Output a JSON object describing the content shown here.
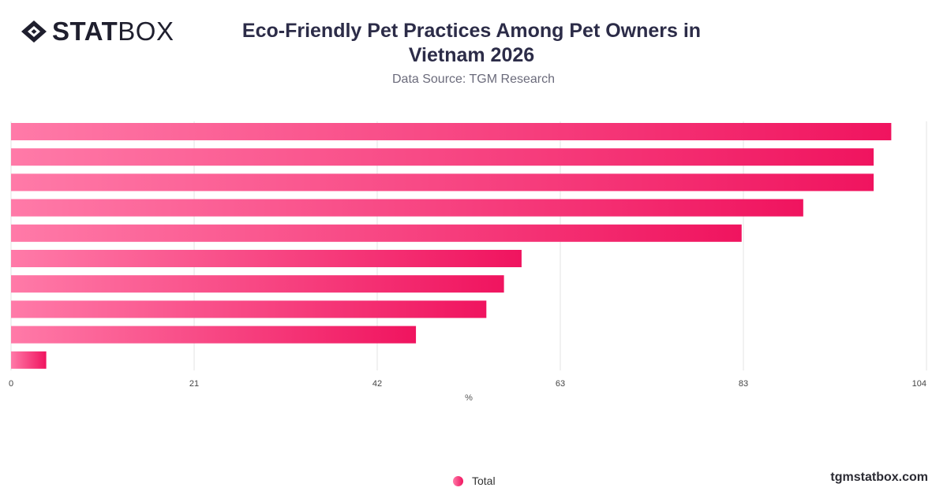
{
  "brand": {
    "logo_bold": "STAT",
    "logo_light": "BOX",
    "site": "tgmstatbox.com"
  },
  "header": {
    "title": "Eco-Friendly Pet Practices Among Pet Owners in Vietnam 2026",
    "subtitle": "Data Source: TGM Research"
  },
  "colors": {
    "bar_start": "#ff7aa8",
    "bar_end": "#f0145f",
    "grid": "#e3e3e3"
  },
  "chart_data": {
    "type": "bar",
    "orientation": "horizontal",
    "categories": [
      "",
      "",
      "",
      "",
      "",
      "",
      "",
      "",
      "",
      ""
    ],
    "series": [
      {
        "name": "Total",
        "values": [
          100,
          98,
          98,
          90,
          83,
          58,
          56,
          54,
          46,
          4
        ]
      }
    ],
    "xlim": [
      0,
      104
    ],
    "xticks": [
      "0",
      "21",
      "42",
      "63",
      "83",
      "104"
    ],
    "xlabel": "%",
    "grid": true,
    "legend": "bottom-center"
  }
}
